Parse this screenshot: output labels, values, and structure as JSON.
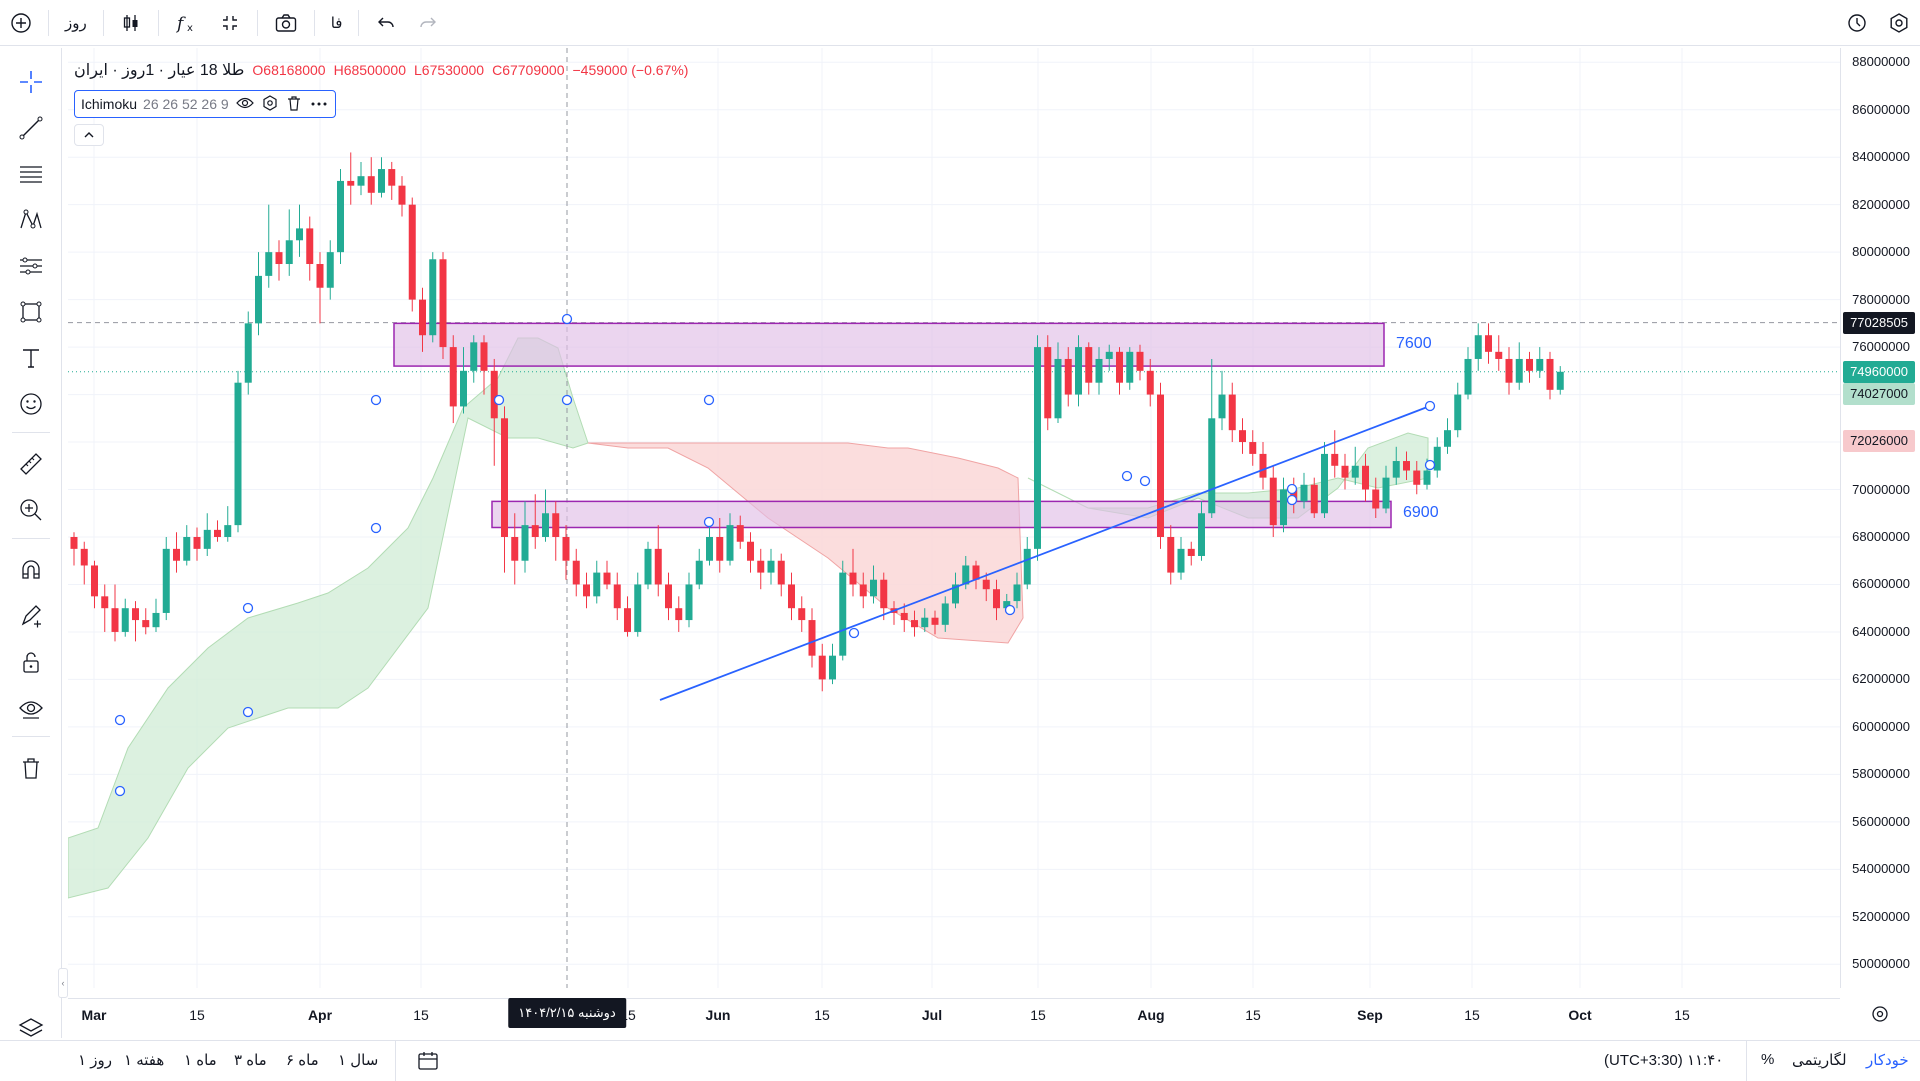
{
  "top_bar": {
    "interval": "روز",
    "lang": "فا",
    "icons": [
      "add-symbol-icon",
      "candles-icon",
      "indicators-icon",
      "fullscreen-icon",
      "camera-icon",
      "undo-icon",
      "redo-icon",
      "alert-clock-icon",
      "settings-icon"
    ]
  },
  "legend": {
    "symbol": "طلا 18 عیار · 1روز · ایران",
    "open": "O68168000",
    "high": "H68500000",
    "low": "L67530000",
    "close": "C67709000",
    "change": "−459000 (−0.67%)"
  },
  "indicator": {
    "name": "Ichimoku",
    "params": "26 26 52 26 9"
  },
  "price_axis": {
    "labels": [
      "88000000",
      "86000000",
      "84000000",
      "82000000",
      "80000000",
      "78000000",
      "76000000",
      "74000000",
      "72000000",
      "70000000",
      "68000000",
      "66000000",
      "64000000",
      "62000000",
      "60000000",
      "58000000",
      "56000000",
      "54000000",
      "52000000",
      "50000000"
    ],
    "tags": [
      {
        "value": "77028505",
        "color": "#131722",
        "text_color": "#ffffff"
      },
      {
        "value": "74960000",
        "color": "#22ab94",
        "text_color": "#ffffff"
      },
      {
        "value": "74027000",
        "color": "#b2dfcc",
        "text_color": "#131722"
      },
      {
        "value": "72026000",
        "color": "#f7c9cc",
        "text_color": "#131722"
      }
    ]
  },
  "time_axis": {
    "labels": [
      {
        "text": "Mar",
        "bold": true
      },
      {
        "text": "15",
        "bold": false
      },
      {
        "text": "Apr",
        "bold": true
      },
      {
        "text": "15",
        "bold": false
      },
      {
        "text": "15",
        "bold": false
      },
      {
        "text": "Jun",
        "bold": true
      },
      {
        "text": "15",
        "bold": false
      },
      {
        "text": "Jul",
        "bold": true
      },
      {
        "text": "15",
        "bold": false
      },
      {
        "text": "Aug",
        "bold": true
      },
      {
        "text": "15",
        "bold": false
      },
      {
        "text": "Sep",
        "bold": true
      },
      {
        "text": "15",
        "bold": false
      },
      {
        "text": "Oct",
        "bold": true
      },
      {
        "text": "15",
        "bold": false
      }
    ],
    "crosshair_date": "دوشنبه ۱۴۰۴/۲/۱۵"
  },
  "zones": [
    {
      "label": "7600",
      "top": 77000000,
      "bottom": 75200000
    },
    {
      "label": "6900",
      "top": 69500000,
      "bottom": 68400000
    }
  ],
  "bottom_bar": {
    "ranges": [
      "سال ۱",
      "ماه ۶",
      "ماه ۳",
      "ماه ۱",
      "هفته ۱",
      "روز ۱"
    ],
    "timezone": "(UTC+3:30) ۱۱:۴۰",
    "percent": "%",
    "log": "لگاریتمی",
    "auto": "خودکار"
  },
  "colors": {
    "up": "#22ab94",
    "down": "#f23645",
    "zone_border": "#9c27b0",
    "zone_fill": "#e1bee7",
    "trend": "#2962ff",
    "cloud_green": "#d6efdb",
    "cloud_red": "#fbdada"
  },
  "chart_data": {
    "type": "candlestick",
    "y_range": [
      49000000,
      88600000
    ],
    "candles": [
      [
        68000000,
        67500000,
        68200000,
        66800000
      ],
      [
        67500000,
        66800000,
        67800000,
        66000000
      ],
      [
        66800000,
        65500000,
        67000000,
        65000000
      ],
      [
        65500000,
        65000000,
        66000000,
        64000000
      ],
      [
        65000000,
        64000000,
        66000000,
        63600000
      ],
      [
        64000000,
        65000000,
        65400000,
        63800000
      ],
      [
        65000000,
        64500000,
        65300000,
        63600000
      ],
      [
        64500000,
        64200000,
        65000000,
        63900000
      ],
      [
        64200000,
        64800000,
        65400000,
        64000000
      ],
      [
        64800000,
        67500000,
        68000000,
        64500000
      ],
      [
        67500000,
        67000000,
        68200000,
        66500000
      ],
      [
        67000000,
        68000000,
        68500000,
        66800000
      ],
      [
        68000000,
        67500000,
        68400000,
        67000000
      ],
      [
        67500000,
        68300000,
        69000000,
        67200000
      ],
      [
        68300000,
        68000000,
        68700000,
        67800000
      ],
      [
        68000000,
        68500000,
        69300000,
        67800000
      ],
      [
        68500000,
        74500000,
        75000000,
        68200000
      ],
      [
        74500000,
        77000000,
        77500000,
        74000000
      ],
      [
        77000000,
        79000000,
        80000000,
        76500000
      ],
      [
        79000000,
        80000000,
        82000000,
        78500000
      ],
      [
        80000000,
        79500000,
        80500000,
        78800000
      ],
      [
        79500000,
        80500000,
        81800000,
        79000000
      ],
      [
        80500000,
        81000000,
        82000000,
        79800000
      ],
      [
        81000000,
        79500000,
        81500000,
        78800000
      ],
      [
        79500000,
        78500000,
        80000000,
        77000000
      ],
      [
        78500000,
        80000000,
        80500000,
        78000000
      ],
      [
        80000000,
        83000000,
        83500000,
        79500000
      ],
      [
        83000000,
        82800000,
        84200000,
        82000000
      ],
      [
        82800000,
        83200000,
        83800000,
        82400000
      ],
      [
        83200000,
        82500000,
        84000000,
        82000000
      ],
      [
        82500000,
        83500000,
        84000000,
        82300000
      ],
      [
        83500000,
        82800000,
        83800000,
        82200000
      ],
      [
        82800000,
        82000000,
        83200000,
        81500000
      ],
      [
        82000000,
        78000000,
        82300000,
        77500000
      ],
      [
        78000000,
        76500000,
        78500000,
        75800000
      ],
      [
        76500000,
        79700000,
        80000000,
        76200000
      ],
      [
        79700000,
        76000000,
        80000000,
        75500000
      ],
      [
        76000000,
        73500000,
        76500000,
        72800000
      ],
      [
        73500000,
        75000000,
        76000000,
        73200000
      ],
      [
        75000000,
        76200000,
        76500000,
        74500000
      ],
      [
        76200000,
        75000000,
        76500000,
        74000000
      ],
      [
        75000000,
        73000000,
        75500000,
        71000000
      ],
      [
        73000000,
        68000000,
        73500000,
        66500000
      ],
      [
        68000000,
        67000000,
        69000000,
        66000000
      ],
      [
        67000000,
        68500000,
        69500000,
        66500000
      ],
      [
        68500000,
        68000000,
        69800000,
        67500000
      ],
      [
        68000000,
        69000000,
        70000000,
        67800000
      ],
      [
        69000000,
        68000000,
        69500000,
        67000000
      ],
      [
        68000000,
        67000000,
        68500000,
        66200000
      ],
      [
        67000000,
        66000000,
        67500000,
        65500000
      ],
      [
        66000000,
        65500000,
        66500000,
        65000000
      ],
      [
        65500000,
        66500000,
        67000000,
        65200000
      ],
      [
        66500000,
        66000000,
        67000000,
        65800000
      ],
      [
        66000000,
        65000000,
        66500000,
        64500000
      ],
      [
        65000000,
        64000000,
        65500000,
        63800000
      ],
      [
        64000000,
        66000000,
        66500000,
        63800000
      ],
      [
        66000000,
        67500000,
        67800000,
        65800000
      ],
      [
        67500000,
        66000000,
        68500000,
        65500000
      ],
      [
        66000000,
        65000000,
        66500000,
        64500000
      ],
      [
        65000000,
        64500000,
        65500000,
        64000000
      ],
      [
        64500000,
        66000000,
        66500000,
        64200000
      ],
      [
        66000000,
        67000000,
        67500000,
        65800000
      ],
      [
        67000000,
        68000000,
        68500000,
        66800000
      ],
      [
        68000000,
        67000000,
        68800000,
        66500000
      ],
      [
        67000000,
        68500000,
        69000000,
        66800000
      ],
      [
        68500000,
        67800000,
        68900000,
        67500000
      ],
      [
        67800000,
        67000000,
        68200000,
        66500000
      ],
      [
        67000000,
        66500000,
        67500000,
        65800000
      ],
      [
        66500000,
        67000000,
        67500000,
        66000000
      ],
      [
        67000000,
        66000000,
        67300000,
        65500000
      ],
      [
        66000000,
        65000000,
        66500000,
        64500000
      ],
      [
        65000000,
        64500000,
        65500000,
        64000000
      ],
      [
        64500000,
        63000000,
        65000000,
        62500000
      ],
      [
        63000000,
        62000000,
        63500000,
        61500000
      ],
      [
        62000000,
        63000000,
        63500000,
        61800000
      ],
      [
        63000000,
        66500000,
        67000000,
        62800000
      ],
      [
        66500000,
        66000000,
        67500000,
        65500000
      ],
      [
        66000000,
        65500000,
        66500000,
        65000000
      ],
      [
        65500000,
        66200000,
        66800000,
        65200000
      ],
      [
        66200000,
        65000000,
        66500000,
        64500000
      ],
      [
        65000000,
        64800000,
        65300000,
        64300000
      ],
      [
        64800000,
        64500000,
        65200000,
        64000000
      ],
      [
        64500000,
        64200000,
        64900000,
        63800000
      ],
      [
        64200000,
        64600000,
        65000000,
        64000000
      ],
      [
        64600000,
        64300000,
        64900000,
        63900000
      ],
      [
        64300000,
        65200000,
        65500000,
        64000000
      ],
      [
        65200000,
        66000000,
        66500000,
        65000000
      ],
      [
        66000000,
        66800000,
        67200000,
        65800000
      ],
      [
        66800000,
        66200000,
        67000000,
        65800000
      ],
      [
        66200000,
        65800000,
        66500000,
        65300000
      ],
      [
        65800000,
        65000000,
        66200000,
        64500000
      ],
      [
        65000000,
        65300000,
        65600000,
        64800000
      ],
      [
        65300000,
        66000000,
        66500000,
        65000000
      ],
      [
        66000000,
        67500000,
        68000000,
        65800000
      ],
      [
        67500000,
        76000000,
        76500000,
        67000000
      ],
      [
        76000000,
        73000000,
        76500000,
        72500000
      ],
      [
        73000000,
        75500000,
        76200000,
        72800000
      ],
      [
        75500000,
        74000000,
        76000000,
        73500000
      ],
      [
        74000000,
        76000000,
        76500000,
        73500000
      ],
      [
        76000000,
        74500000,
        76200000,
        74000000
      ],
      [
        74500000,
        75500000,
        76000000,
        74000000
      ],
      [
        75500000,
        75800000,
        76100000,
        75000000
      ],
      [
        75800000,
        74500000,
        76000000,
        74000000
      ],
      [
        74500000,
        75800000,
        76000000,
        74200000
      ],
      [
        75800000,
        75000000,
        76100000,
        74600000
      ],
      [
        75000000,
        74000000,
        75500000,
        73500000
      ],
      [
        74000000,
        68000000,
        74500000,
        67500000
      ],
      [
        68000000,
        66500000,
        68500000,
        66000000
      ],
      [
        66500000,
        67500000,
        68000000,
        66200000
      ],
      [
        67500000,
        67200000,
        67800000,
        66800000
      ],
      [
        67200000,
        69000000,
        69500000,
        67000000
      ],
      [
        69000000,
        73000000,
        75500000,
        68800000
      ],
      [
        73000000,
        74000000,
        75000000,
        72500000
      ],
      [
        74000000,
        72500000,
        74500000,
        72000000
      ],
      [
        72500000,
        72000000,
        73000000,
        71500000
      ],
      [
        72000000,
        71500000,
        72500000,
        71000000
      ],
      [
        71500000,
        70500000,
        72000000,
        70000000
      ],
      [
        70500000,
        68500000,
        71000000,
        68000000
      ],
      [
        68500000,
        70000000,
        70500000,
        68200000
      ],
      [
        70000000,
        69500000,
        70500000,
        69000000
      ],
      [
        69500000,
        70200000,
        70700000,
        69200000
      ],
      [
        70200000,
        69000000,
        70500000,
        68800000
      ],
      [
        69000000,
        71500000,
        72000000,
        68800000
      ],
      [
        71500000,
        71000000,
        72500000,
        70500000
      ],
      [
        71000000,
        70500000,
        71500000,
        70000000
      ],
      [
        70500000,
        71000000,
        71800000,
        70200000
      ],
      [
        71000000,
        70000000,
        71500000,
        69500000
      ],
      [
        70000000,
        69200000,
        70500000,
        68800000
      ],
      [
        69200000,
        70500000,
        71000000,
        69000000
      ],
      [
        70500000,
        71200000,
        71800000,
        70200000
      ],
      [
        71200000,
        70800000,
        71600000,
        70400000
      ],
      [
        70800000,
        70200000,
        71200000,
        69800000
      ],
      [
        70200000,
        70800000,
        71300000,
        70000000
      ],
      [
        70800000,
        71800000,
        72200000,
        70500000
      ],
      [
        71800000,
        72500000,
        73000000,
        71500000
      ],
      [
        72500000,
        74000000,
        74500000,
        72200000
      ],
      [
        74000000,
        75500000,
        76000000,
        73800000
      ],
      [
        75500000,
        76500000,
        77000000,
        75000000
      ],
      [
        76500000,
        75800000,
        77000000,
        75300000
      ],
      [
        75800000,
        75500000,
        76500000,
        75000000
      ],
      [
        75500000,
        74500000,
        76000000,
        74000000
      ],
      [
        74500000,
        75500000,
        76200000,
        74200000
      ],
      [
        75500000,
        75000000,
        75800000,
        74500000
      ],
      [
        75000000,
        75500000,
        76000000,
        74700000
      ],
      [
        75500000,
        74200000,
        75800000,
        73800000
      ],
      [
        74200000,
        74960000,
        75200000,
        74000000
      ]
    ]
  }
}
